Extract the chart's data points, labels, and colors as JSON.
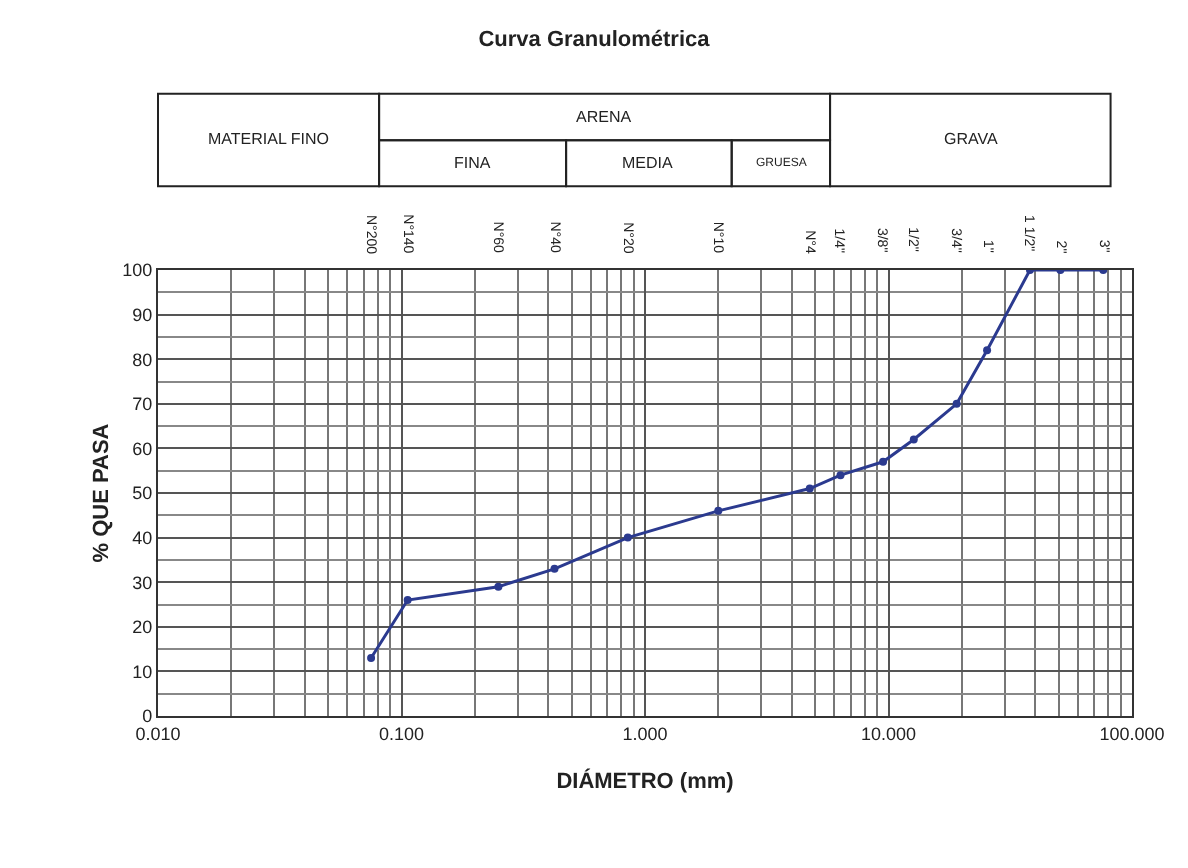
{
  "chart_data": {
    "type": "line",
    "title": "Curva Granulométrica",
    "xlabel": "DIÁMETRO (mm)",
    "ylabel": "% QUE PASA",
    "x": [
      0.075,
      0.106,
      0.25,
      0.425,
      0.85,
      2.0,
      4.75,
      6.35,
      9.5,
      12.7,
      19.05,
      25.4,
      38.1,
      50.8,
      76.2
    ],
    "series": [
      {
        "color": "#2b3a8f",
        "values": [
          13,
          26,
          29,
          33,
          40,
          46,
          51,
          54,
          57,
          62,
          70,
          82,
          100,
          100,
          100
        ]
      }
    ],
    "log": "x",
    "xlim": [
      0.01,
      100
    ],
    "xticks": [
      {
        "value": 0.01,
        "label": "0.010"
      },
      {
        "value": 0.1,
        "label": "0.100"
      },
      {
        "value": 1,
        "label": "1.000"
      },
      {
        "value": 10,
        "label": "10.000"
      },
      {
        "value": 100,
        "label": "100.000"
      }
    ],
    "ylim": [
      0,
      100
    ],
    "yticks": [
      0,
      10,
      20,
      30,
      40,
      50,
      60,
      70,
      80,
      90,
      100
    ],
    "grid": true,
    "marker": "circle",
    "line_style": "solid",
    "annotations": [
      "MATERIAL FINO",
      "ARENA",
      "FINA",
      "MEDIA",
      "GRUESA",
      "GRAVA",
      "N°200",
      "N°140",
      "N°60",
      "N°40",
      "N°20",
      "N°10",
      "N°4",
      "1/4\"",
      "3/8\"",
      "1/2\"",
      "3/4\"",
      "1\"",
      "1 1/2\"",
      "2\"",
      "3\""
    ]
  }
}
